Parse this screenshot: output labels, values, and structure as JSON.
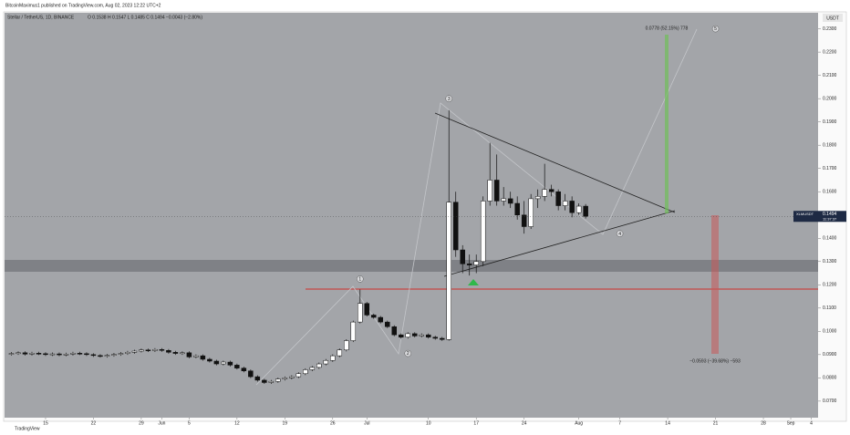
{
  "chart_data": {
    "type": "candlestick",
    "header": "BitcoinMaximus1 published on TradingView.com, Aug 02, 2023 12:22 UTC+2",
    "symbol": "Stellar / TetherUS, 1D, BINANCE",
    "legend": "O 0.1538  H 0.1547  L 0.1485  C 0.1494  −0.0043 (−2.80%)",
    "currency": "USDT",
    "footer": "TradingView",
    "price_tag": {
      "symbol": "XLMUSDT",
      "value": 0.1494,
      "countdown": "11:37:37"
    },
    "wave_labels": [
      {
        "label": "1",
        "x": "2023-06-30",
        "y": 0.1225
      },
      {
        "label": "2",
        "x": "2023-07-07",
        "y": 0.0905
      },
      {
        "label": "3",
        "x": "2023-07-13",
        "y": 0.2
      },
      {
        "label": "4",
        "x": "2023-08-07",
        "y": 0.142
      },
      {
        "label": "5",
        "x": "2023-08-21",
        "y": 0.23
      }
    ],
    "target_up": "0.0778 (52.15%) 778",
    "target_down": "−0.0593 (−39.68%) −593",
    "xlim": [
      "2023-05-09",
      "2023-09-05"
    ],
    "ylim": [
      0.0629,
      0.2369
    ],
    "yticks": [
      {
        "value": 0.07,
        "label": "0.0700"
      },
      {
        "value": 0.08,
        "label": "0.0800"
      },
      {
        "value": 0.09,
        "label": "0.0900"
      },
      {
        "value": 0.1,
        "label": "0.1000"
      },
      {
        "value": 0.11,
        "label": "0.1100"
      },
      {
        "value": 0.12,
        "label": "0.1200"
      },
      {
        "value": 0.13,
        "label": "0.1300"
      },
      {
        "value": 0.14,
        "label": "0.1400"
      },
      {
        "value": 0.16,
        "label": "0.1600"
      },
      {
        "value": 0.17,
        "label": "0.1700"
      },
      {
        "value": 0.18,
        "label": "0.1800"
      },
      {
        "value": 0.19,
        "label": "0.1900"
      },
      {
        "value": 0.2,
        "label": "0.2000"
      },
      {
        "value": 0.21,
        "label": "0.2100"
      },
      {
        "value": 0.22,
        "label": "0.2200"
      },
      {
        "value": 0.23,
        "label": "0.2300"
      }
    ],
    "xticks": [
      {
        "value": "2023-05-15",
        "label": "15"
      },
      {
        "value": "2023-05-22",
        "label": "22"
      },
      {
        "value": "2023-05-29",
        "label": "29"
      },
      {
        "value": "2023-06-01",
        "label": "Jun"
      },
      {
        "value": "2023-06-05",
        "label": "5"
      },
      {
        "value": "2023-06-12",
        "label": "12"
      },
      {
        "value": "2023-06-19",
        "label": "19"
      },
      {
        "value": "2023-06-26",
        "label": "26"
      },
      {
        "value": "2023-07-01",
        "label": "Jul"
      },
      {
        "value": "2023-07-10",
        "label": "10"
      },
      {
        "value": "2023-07-17",
        "label": "17"
      },
      {
        "value": "2023-07-24",
        "label": "24"
      },
      {
        "value": "2023-08-01",
        "label": "Aug"
      },
      {
        "value": "2023-08-07",
        "label": "7"
      },
      {
        "value": "2023-08-14",
        "label": "14"
      },
      {
        "value": "2023-08-21",
        "label": "21"
      },
      {
        "value": "2023-08-28",
        "label": "28"
      },
      {
        "value": "2023-09-01",
        "label": "Sep"
      },
      {
        "value": "2023-09-04",
        "label": "4"
      }
    ],
    "grid": false,
    "up_color": "#ffffff",
    "down_color": "#111111",
    "x": [
      "2023-05-10",
      "2023-05-11",
      "2023-05-12",
      "2023-05-13",
      "2023-05-14",
      "2023-05-15",
      "2023-05-16",
      "2023-05-17",
      "2023-05-18",
      "2023-05-19",
      "2023-05-20",
      "2023-05-21",
      "2023-05-22",
      "2023-05-23",
      "2023-05-24",
      "2023-05-25",
      "2023-05-26",
      "2023-05-27",
      "2023-05-28",
      "2023-05-29",
      "2023-05-30",
      "2023-05-31",
      "2023-06-01",
      "2023-06-02",
      "2023-06-03",
      "2023-06-04",
      "2023-06-05",
      "2023-06-06",
      "2023-06-07",
      "2023-06-08",
      "2023-06-09",
      "2023-06-10",
      "2023-06-11",
      "2023-06-12",
      "2023-06-13",
      "2023-06-14",
      "2023-06-15",
      "2023-06-16",
      "2023-06-17",
      "2023-06-18",
      "2023-06-19",
      "2023-06-20",
      "2023-06-21",
      "2023-06-22",
      "2023-06-23",
      "2023-06-24",
      "2023-06-25",
      "2023-06-26",
      "2023-06-27",
      "2023-06-28",
      "2023-06-29",
      "2023-06-30",
      "2023-07-01",
      "2023-07-02",
      "2023-07-03",
      "2023-07-04",
      "2023-07-05",
      "2023-07-06",
      "2023-07-07",
      "2023-07-08",
      "2023-07-09",
      "2023-07-10",
      "2023-07-11",
      "2023-07-12",
      "2023-07-13",
      "2023-07-14",
      "2023-07-15",
      "2023-07-16",
      "2023-07-17",
      "2023-07-18",
      "2023-07-19",
      "2023-07-20",
      "2023-07-21",
      "2023-07-22",
      "2023-07-23",
      "2023-07-24",
      "2023-07-25",
      "2023-07-26",
      "2023-07-27",
      "2023-07-28",
      "2023-07-29",
      "2023-07-30",
      "2023-07-31",
      "2023-08-01",
      "2023-08-02"
    ],
    "open": [
      0.0902,
      0.0905,
      0.0908,
      0.0902,
      0.0906,
      0.0904,
      0.09,
      0.0903,
      0.0899,
      0.0902,
      0.0906,
      0.0904,
      0.09,
      0.0896,
      0.0893,
      0.0897,
      0.0901,
      0.0905,
      0.091,
      0.0915,
      0.092,
      0.0917,
      0.0922,
      0.0918,
      0.091,
      0.0905,
      0.0908,
      0.089,
      0.0895,
      0.088,
      0.0872,
      0.086,
      0.0868,
      0.0855,
      0.0842,
      0.083,
      0.0805,
      0.079,
      0.078,
      0.0785,
      0.0795,
      0.08,
      0.0805,
      0.0818,
      0.0835,
      0.0845,
      0.086,
      0.0875,
      0.0895,
      0.092,
      0.096,
      0.104,
      0.112,
      0.107,
      0.106,
      0.104,
      0.102,
      0.0985,
      0.0975,
      0.099,
      0.098,
      0.0985,
      0.0975,
      0.097,
      0.0965,
      0.1555,
      0.135,
      0.129,
      0.1285,
      0.13,
      0.156,
      0.165,
      0.156,
      0.157,
      0.155,
      0.15,
      0.145,
      0.157,
      0.158,
      0.161,
      0.16,
      0.154,
      0.156,
      0.151,
      0.1538
    ],
    "high": [
      0.0911,
      0.0914,
      0.0914,
      0.0912,
      0.0912,
      0.091,
      0.0909,
      0.0909,
      0.0908,
      0.0912,
      0.0912,
      0.091,
      0.0906,
      0.0902,
      0.0903,
      0.0907,
      0.0911,
      0.0916,
      0.0921,
      0.0926,
      0.0926,
      0.0928,
      0.0928,
      0.0924,
      0.0916,
      0.0914,
      0.0914,
      0.0901,
      0.0901,
      0.0886,
      0.0878,
      0.0874,
      0.0874,
      0.0861,
      0.0848,
      0.0836,
      0.0811,
      0.0796,
      0.0791,
      0.0801,
      0.0806,
      0.0811,
      0.0824,
      0.0841,
      0.0851,
      0.0866,
      0.0881,
      0.0901,
      0.0926,
      0.0966,
      0.1046,
      0.118,
      0.1126,
      0.1076,
      0.1066,
      0.1046,
      0.1026,
      0.0991,
      0.0996,
      0.0996,
      0.0991,
      0.0991,
      0.0981,
      0.0976,
      0.195,
      0.16,
      0.137,
      0.133,
      0.133,
      0.158,
      0.181,
      0.176,
      0.162,
      0.16,
      0.158,
      0.156,
      0.159,
      0.161,
      0.172,
      0.163,
      0.161,
      0.159,
      0.158,
      0.155,
      0.1547
    ],
    "low": [
      0.0896,
      0.0899,
      0.0896,
      0.0896,
      0.0898,
      0.0894,
      0.0894,
      0.0893,
      0.0893,
      0.0896,
      0.0898,
      0.0894,
      0.089,
      0.0887,
      0.0887,
      0.0891,
      0.0895,
      0.0899,
      0.0904,
      0.0909,
      0.0911,
      0.0911,
      0.0912,
      0.0904,
      0.0899,
      0.0899,
      0.0884,
      0.0884,
      0.0874,
      0.0866,
      0.0854,
      0.0854,
      0.0849,
      0.0836,
      0.0824,
      0.0799,
      0.0784,
      0.0774,
      0.0774,
      0.0779,
      0.0789,
      0.0794,
      0.0799,
      0.0812,
      0.0829,
      0.0839,
      0.0854,
      0.0869,
      0.0889,
      0.0914,
      0.0954,
      0.1034,
      0.1064,
      0.1054,
      0.1034,
      0.1014,
      0.0979,
      0.0969,
      0.0969,
      0.0974,
      0.0974,
      0.0969,
      0.0964,
      0.0959,
      0.096,
      0.132,
      0.125,
      0.124,
      0.125,
      0.128,
      0.154,
      0.154,
      0.154,
      0.153,
      0.148,
      0.142,
      0.144,
      0.153,
      0.156,
      0.158,
      0.152,
      0.152,
      0.149,
      0.15,
      0.1485
    ],
    "close": [
      0.0905,
      0.0908,
      0.0902,
      0.0906,
      0.0904,
      0.09,
      0.0903,
      0.0899,
      0.0902,
      0.0906,
      0.0904,
      0.09,
      0.0896,
      0.0893,
      0.0897,
      0.0901,
      0.0905,
      0.091,
      0.0915,
      0.092,
      0.0917,
      0.0922,
      0.0918,
      0.091,
      0.0905,
      0.0908,
      0.089,
      0.0895,
      0.088,
      0.0872,
      0.086,
      0.0868,
      0.0855,
      0.0842,
      0.083,
      0.0805,
      0.079,
      0.078,
      0.0785,
      0.0795,
      0.08,
      0.0805,
      0.0818,
      0.0835,
      0.0845,
      0.086,
      0.0875,
      0.0895,
      0.092,
      0.096,
      0.104,
      0.112,
      0.107,
      0.106,
      0.104,
      0.102,
      0.0985,
      0.0975,
      0.099,
      0.098,
      0.0985,
      0.0975,
      0.097,
      0.0965,
      0.1555,
      0.135,
      0.129,
      0.1285,
      0.13,
      0.156,
      0.165,
      0.156,
      0.157,
      0.155,
      0.15,
      0.145,
      0.157,
      0.158,
      0.161,
      0.16,
      0.154,
      0.156,
      0.151,
      0.1538,
      0.1494
    ]
  }
}
